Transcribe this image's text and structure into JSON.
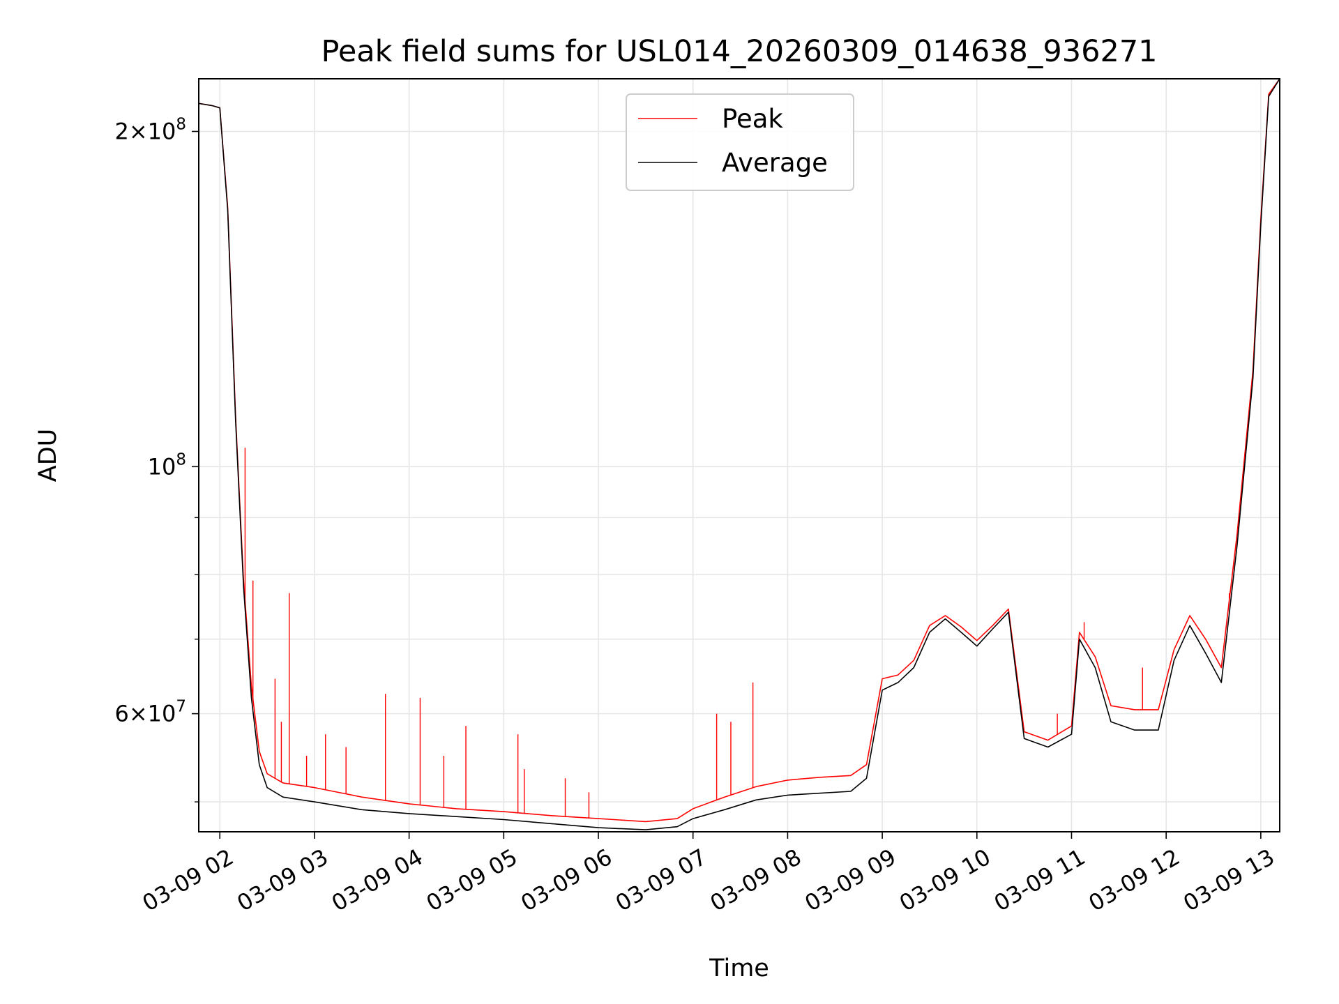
{
  "chart_data": {
    "type": "line",
    "title": "Peak field sums for USL014_20260309_014638_936271",
    "xlabel": "Time",
    "ylabel": "ADU",
    "yscale": "log",
    "xlim": [
      "03-09 01:46:38",
      "03-09 13:12"
    ],
    "ylim": [
      47000000,
      223000000
    ],
    "grid": true,
    "legend": {
      "placement": "top-center",
      "entries": [
        "Peak",
        "Average"
      ]
    },
    "x_ticks": [
      {
        "t": 2,
        "label": "03-09 02"
      },
      {
        "t": 3,
        "label": "03-09 03"
      },
      {
        "t": 4,
        "label": "03-09 04"
      },
      {
        "t": 5,
        "label": "03-09 05"
      },
      {
        "t": 6,
        "label": "03-09 06"
      },
      {
        "t": 7,
        "label": "03-09 07"
      },
      {
        "t": 8,
        "label": "03-09 08"
      },
      {
        "t": 9,
        "label": "03-09 09"
      },
      {
        "t": 10,
        "label": "03-09 10"
      },
      {
        "t": 11,
        "label": "03-09 11"
      },
      {
        "t": 12,
        "label": "03-09 12"
      },
      {
        "t": 13,
        "label": "03-09 13"
      }
    ],
    "y_ticks_major": [
      {
        "v": 60000000,
        "mant": "6",
        "exp": "7"
      },
      {
        "v": 100000000,
        "mant": "",
        "exp": "8"
      },
      {
        "v": 200000000,
        "mant": "2",
        "exp": "8"
      }
    ],
    "y_ticks_minor": [
      50000000,
      70000000,
      80000000,
      90000000
    ],
    "series": [
      {
        "name": "Average",
        "color": "#000000",
        "x": [
          "03-09 01:46",
          "03-09 01:55",
          "03-09 02:00",
          "03-09 02:05",
          "03-09 02:10",
          "03-09 02:15",
          "03-09 02:20",
          "03-09 02:25",
          "03-09 02:30",
          "03-09 02:40",
          "03-09 03:00",
          "03-09 03:30",
          "03-09 04:00",
          "03-09 04:30",
          "03-09 05:00",
          "03-09 05:30",
          "03-09 06:00",
          "03-09 06:30",
          "03-09 06:50",
          "03-09 07:00",
          "03-09 07:20",
          "03-09 07:40",
          "03-09 08:00",
          "03-09 08:20",
          "03-09 08:40",
          "03-09 08:50",
          "03-09 09:00",
          "03-09 09:10",
          "03-09 09:20",
          "03-09 09:30",
          "03-09 09:40",
          "03-09 09:50",
          "03-09 10:00",
          "03-09 10:10",
          "03-09 10:20",
          "03-09 10:30",
          "03-09 10:45",
          "03-09 11:00",
          "03-09 11:05",
          "03-09 11:15",
          "03-09 11:25",
          "03-09 11:40",
          "03-09 11:55",
          "03-09 12:05",
          "03-09 12:15",
          "03-09 12:25",
          "03-09 12:35",
          "03-09 12:45",
          "03-09 12:55",
          "03-09 13:00",
          "03-09 13:05",
          "03-09 13:12"
        ],
        "values": [
          212000000,
          211000000,
          210000000,
          170000000,
          110000000,
          78000000,
          62000000,
          54000000,
          51500000,
          50500000,
          50000000,
          49200000,
          48800000,
          48500000,
          48200000,
          47800000,
          47400000,
          47200000,
          47500000,
          48300000,
          49200000,
          50200000,
          50700000,
          50900000,
          51100000,
          52500000,
          63000000,
          64000000,
          66000000,
          71000000,
          73000000,
          71000000,
          69000000,
          71500000,
          74000000,
          57000000,
          56000000,
          57500000,
          70000000,
          66000000,
          59000000,
          58000000,
          58000000,
          67000000,
          72000000,
          68000000,
          64000000,
          85000000,
          120000000,
          165000000,
          215000000,
          223000000
        ]
      },
      {
        "name": "Peak",
        "color": "#ff0000",
        "x": [
          "03-09 01:46",
          "03-09 01:55",
          "03-09 02:00",
          "03-09 02:05",
          "03-09 02:10",
          "03-09 02:15",
          "03-09 02:20",
          "03-09 02:25",
          "03-09 02:30",
          "03-09 02:40",
          "03-09 03:00",
          "03-09 03:30",
          "03-09 04:00",
          "03-09 04:30",
          "03-09 05:00",
          "03-09 05:30",
          "03-09 06:00",
          "03-09 06:30",
          "03-09 06:50",
          "03-09 07:00",
          "03-09 07:20",
          "03-09 07:40",
          "03-09 08:00",
          "03-09 08:20",
          "03-09 08:40",
          "03-09 08:50",
          "03-09 09:00",
          "03-09 09:10",
          "03-09 09:20",
          "03-09 09:30",
          "03-09 09:40",
          "03-09 09:50",
          "03-09 10:00",
          "03-09 10:10",
          "03-09 10:20",
          "03-09 10:30",
          "03-09 10:45",
          "03-09 11:00",
          "03-09 11:05",
          "03-09 11:15",
          "03-09 11:25",
          "03-09 11:40",
          "03-09 11:55",
          "03-09 12:05",
          "03-09 12:15",
          "03-09 12:25",
          "03-09 12:35",
          "03-09 12:45",
          "03-09 12:55",
          "03-09 13:00",
          "03-09 13:05",
          "03-09 13:12"
        ],
        "values": [
          212000000,
          211000000,
          210000000,
          171000000,
          111000000,
          79000000,
          63500000,
          55500000,
          53000000,
          52000000,
          51500000,
          50500000,
          49800000,
          49300000,
          49000000,
          48600000,
          48300000,
          48000000,
          48300000,
          49300000,
          50500000,
          51600000,
          52300000,
          52600000,
          52800000,
          54000000,
          64500000,
          65000000,
          67000000,
          72000000,
          73500000,
          71800000,
          69800000,
          72000000,
          74500000,
          57800000,
          56800000,
          58500000,
          71000000,
          67500000,
          61000000,
          60500000,
          60500000,
          68500000,
          73500000,
          70000000,
          66000000,
          87000000,
          122000000,
          167000000,
          216000000,
          223000000
        ]
      }
    ],
    "spikes_peak": [
      [
        "03-09 02:16",
        104000000
      ],
      [
        "03-09 02:21",
        79000000
      ],
      [
        "03-09 02:35",
        64500000
      ],
      [
        "03-09 02:39",
        59000000
      ],
      [
        "03-09 02:44",
        77000000
      ],
      [
        "03-09 02:55",
        55000000
      ],
      [
        "03-09 03:07",
        57500000
      ],
      [
        "03-09 03:20",
        56000000
      ],
      [
        "03-09 03:45",
        62500000
      ],
      [
        "03-09 04:07",
        62000000
      ],
      [
        "03-09 04:22",
        55000000
      ],
      [
        "03-09 04:36",
        58500000
      ],
      [
        "03-09 05:09",
        57500000
      ],
      [
        "03-09 05:13",
        53500000
      ],
      [
        "03-09 05:39",
        52500000
      ],
      [
        "03-09 05:54",
        51000000
      ],
      [
        "03-09 07:15",
        60000000
      ],
      [
        "03-09 07:24",
        59000000
      ],
      [
        "03-09 07:38",
        64000000
      ],
      [
        "03-09 10:51",
        60000000
      ],
      [
        "03-09 11:08",
        72500000
      ],
      [
        "03-09 11:45",
        66000000
      ],
      [
        "03-09 12:40",
        77000000
      ]
    ]
  }
}
